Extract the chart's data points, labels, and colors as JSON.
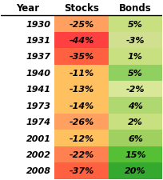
{
  "years": [
    "1930",
    "1931",
    "1937",
    "1940",
    "1941",
    "1973",
    "1974",
    "2001",
    "2002",
    "2008"
  ],
  "stocks": [
    "-25%",
    "-44%",
    "-35%",
    "-11%",
    "-13%",
    "-14%",
    "-26%",
    "-12%",
    "-22%",
    "-37%"
  ],
  "bonds": [
    "5%",
    "-3%",
    "1%",
    "5%",
    "-2%",
    "4%",
    "2%",
    "6%",
    "15%",
    "20%"
  ],
  "stocks_colors": [
    "#FFA060",
    "#FF4040",
    "#FF6040",
    "#FFC060",
    "#FFC060",
    "#FFC060",
    "#FFA060",
    "#FFC060",
    "#FF8050",
    "#FF6040"
  ],
  "bonds_colors": [
    "#C8E080",
    "#D0E090",
    "#C8E080",
    "#90D060",
    "#D8E898",
    "#B0D870",
    "#C8E080",
    "#A0D060",
    "#55C035",
    "#35A830"
  ],
  "header": [
    "Year",
    "Stocks",
    "Bonds"
  ],
  "background": "#FFFFFF",
  "header_color": "#000000",
  "text_color": "#000000",
  "fig_width": 2.04,
  "fig_height": 2.26
}
